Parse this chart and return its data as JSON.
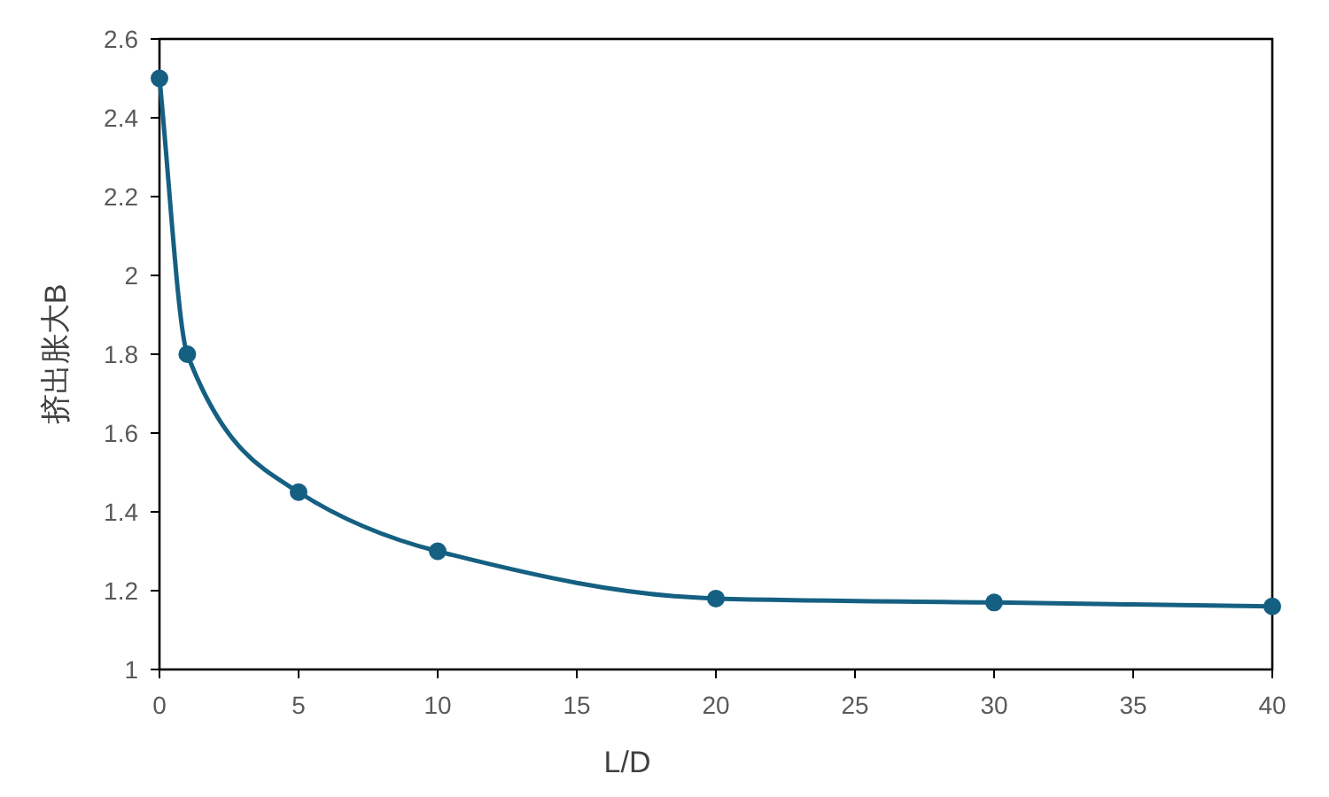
{
  "chart_data": {
    "type": "line",
    "xlabel": "L/D",
    "ylabel": "挤出胀大B",
    "x": [
      0,
      1,
      5,
      10,
      20,
      30,
      40
    ],
    "series": [
      {
        "color": "#156082",
        "values": [
          2.5,
          1.8,
          1.45,
          1.3,
          1.18,
          1.17,
          1.16
        ]
      }
    ],
    "xlim": [
      0,
      40
    ],
    "xticks": [
      0,
      5,
      10,
      15,
      20,
      25,
      30,
      35,
      40
    ],
    "ylim": [
      1,
      2.6
    ],
    "yticks": [
      1,
      1.2,
      1.4,
      1.6,
      1.8,
      2,
      2.2,
      2.4,
      2.6
    ],
    "grid": false,
    "marker": "circle",
    "line_style": "solid"
  }
}
